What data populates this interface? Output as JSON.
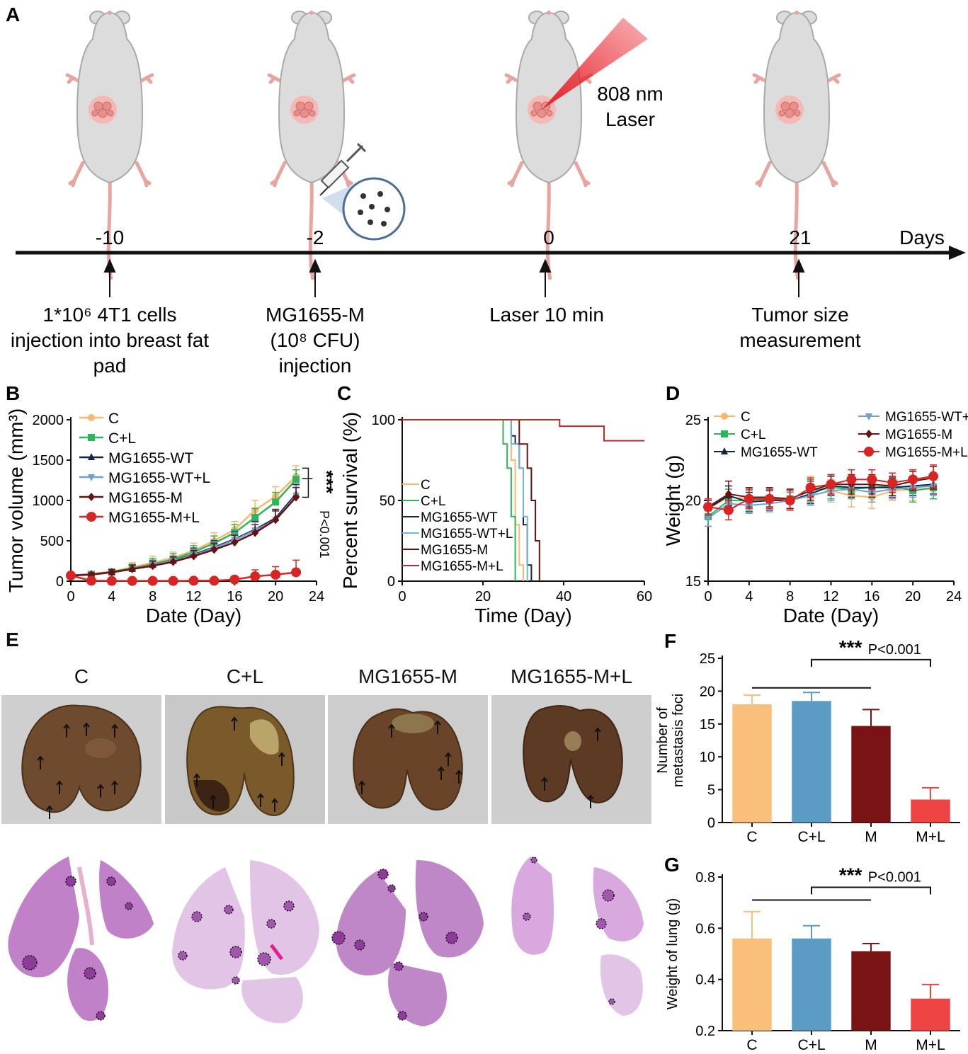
{
  "panel_labels": {
    "A": "A",
    "B": "B",
    "C": "C",
    "D": "D",
    "E": "E",
    "F": "F",
    "G": "G"
  },
  "timeline": {
    "axis_unit": "Days",
    "events": [
      {
        "day": "-10",
        "description_lines": [
          "1*10⁶ 4T1 cells",
          "injection into breast fat",
          "pad"
        ]
      },
      {
        "day": "-2",
        "description_lines": [
          "MG1655-M",
          "(10⁸ CFU)",
          "injection"
        ]
      },
      {
        "day": "0",
        "description_lines": [
          "Laser 10 min"
        ]
      },
      {
        "day": "21",
        "description_lines": [
          "Tumor size",
          "measurement"
        ]
      }
    ],
    "laser_label_lines": [
      "808 nm",
      "Laser"
    ],
    "colors": {
      "mouse_body": "#dcdcdc",
      "mouse_outline": "#a9a9a9",
      "mouse_pink": "#e8a5a0",
      "tumor": "#f0a0a0",
      "laser": "#e8202a"
    }
  },
  "panel_E": {
    "columns": [
      "C",
      "C+L",
      "MG1655-M",
      "MG1655-M+L"
    ],
    "colors": {
      "photo_bg": "#cfcfcf",
      "lung": "#6e4a2e",
      "histo": "#b66bbf",
      "histo_light": "#e2c4e7"
    }
  },
  "chart_data": [
    {
      "id": "B",
      "type": "line",
      "xlabel": "Date (Day)",
      "ylabel": "Tumor volume (mm³)",
      "xlim": [
        0,
        24
      ],
      "ylim": [
        0,
        2000
      ],
      "xticks": [
        0,
        4,
        8,
        12,
        16,
        20,
        24
      ],
      "yticks": [
        0,
        500,
        1000,
        1500,
        2000
      ],
      "x": [
        0,
        2,
        4,
        6,
        8,
        10,
        12,
        14,
        16,
        18,
        20,
        22
      ],
      "legend_position": "top-left",
      "annotation": {
        "stars": "***",
        "text": "P<0.001"
      },
      "series": [
        {
          "name": "C",
          "color": "#f9b86b",
          "marker": "circle",
          "values": [
            70,
            90,
            120,
            170,
            230,
            290,
            380,
            500,
            640,
            880,
            1050,
            1300
          ],
          "errors": [
            20,
            30,
            30,
            60,
            80,
            70,
            90,
            100,
            100,
            120,
            120,
            130
          ]
        },
        {
          "name": "C+L",
          "color": "#2cb55a",
          "marker": "square",
          "values": [
            70,
            85,
            115,
            160,
            210,
            270,
            360,
            470,
            600,
            790,
            980,
            1260
          ],
          "errors": [
            20,
            30,
            30,
            50,
            70,
            70,
            80,
            90,
            100,
            110,
            120,
            120
          ]
        },
        {
          "name": "MG1655-WT",
          "color": "#14254a",
          "marker": "triangle-up",
          "values": [
            70,
            85,
            110,
            150,
            200,
            250,
            330,
            420,
            520,
            640,
            780,
            1080
          ],
          "errors": [
            20,
            25,
            30,
            50,
            60,
            60,
            80,
            80,
            90,
            100,
            110,
            120
          ]
        },
        {
          "name": "MG1655-WT+L",
          "color": "#6f9fcf",
          "marker": "triangle-down",
          "values": [
            70,
            85,
            110,
            150,
            200,
            250,
            320,
            410,
            510,
            630,
            760,
            1060
          ],
          "errors": [
            20,
            25,
            30,
            50,
            60,
            60,
            80,
            80,
            90,
            100,
            110,
            120
          ]
        },
        {
          "name": "MG1655-M",
          "color": "#6b1010",
          "marker": "diamond",
          "values": [
            70,
            80,
            110,
            150,
            190,
            240,
            310,
            390,
            480,
            600,
            760,
            1040
          ],
          "errors": [
            20,
            25,
            30,
            50,
            60,
            60,
            70,
            80,
            90,
            100,
            110,
            120
          ]
        },
        {
          "name": "MG1655-M+L",
          "color": "#d92424",
          "marker": "circle",
          "values": [
            70,
            5,
            3,
            3,
            3,
            3,
            5,
            5,
            20,
            60,
            80,
            110
          ],
          "errors": [
            20,
            10,
            5,
            5,
            5,
            5,
            10,
            10,
            30,
            80,
            100,
            150
          ]
        }
      ]
    },
    {
      "id": "C",
      "type": "line",
      "xlabel": "Time (Day)",
      "ylabel": "Percent survival (%)",
      "xlim": [
        0,
        60
      ],
      "ylim": [
        0,
        100
      ],
      "xticks": [
        0,
        20,
        40,
        60
      ],
      "yticks": [
        0,
        50,
        100
      ],
      "legend_position": "bottom-left",
      "series": [
        {
          "name": "C",
          "color": "#f9b86b",
          "x": [
            0,
            27,
            27,
            28,
            28,
            29,
            29,
            30,
            30
          ],
          "values": [
            100,
            100,
            75,
            75,
            35,
            35,
            10,
            10,
            0
          ]
        },
        {
          "name": "C+L",
          "color": "#2cb55a",
          "x": [
            0,
            25,
            25,
            26,
            26,
            27,
            27,
            28,
            28
          ],
          "values": [
            100,
            100,
            85,
            85,
            70,
            70,
            40,
            40,
            0
          ]
        },
        {
          "name": "MG1655-WT",
          "color": "#14254a",
          "x": [
            0,
            27,
            27,
            28,
            28,
            29,
            29,
            30,
            30,
            31,
            31,
            32,
            32
          ],
          "values": [
            100,
            100,
            90,
            90,
            85,
            85,
            70,
            70,
            35,
            35,
            10,
            10,
            0
          ]
        },
        {
          "name": "MG1655-WT+L",
          "color": "#6fb8d8",
          "x": [
            0,
            27,
            27,
            29,
            29,
            30,
            30,
            31,
            31
          ],
          "values": [
            100,
            100,
            85,
            85,
            70,
            70,
            40,
            40,
            0
          ]
        },
        {
          "name": "MG1655-M",
          "color": "#6b1010",
          "x": [
            0,
            29,
            29,
            31,
            31,
            32,
            32,
            33,
            33,
            34,
            34
          ],
          "values": [
            100,
            100,
            85,
            85,
            70,
            70,
            50,
            50,
            25,
            25,
            0
          ]
        },
        {
          "name": "MG1655-M+L",
          "color": "#c42a2a",
          "x": [
            0,
            39,
            39,
            50,
            50,
            60
          ],
          "values": [
            100,
            100,
            96,
            96,
            87,
            87
          ]
        }
      ]
    },
    {
      "id": "D",
      "type": "line",
      "xlabel": "Date (Day)",
      "ylabel": "Weight (g)",
      "xlim": [
        0,
        24
      ],
      "ylim": [
        15,
        25
      ],
      "xticks": [
        0,
        4,
        8,
        12,
        16,
        20,
        24
      ],
      "yticks": [
        15,
        20,
        25
      ],
      "x": [
        0,
        2,
        4,
        6,
        8,
        10,
        12,
        14,
        16,
        18,
        20,
        22
      ],
      "legend_position": "top",
      "series": [
        {
          "name": "C",
          "color": "#f9b86b",
          "marker": "circle",
          "values": [
            19.5,
            20.2,
            20.1,
            20.0,
            20.0,
            20.8,
            20.6,
            20.3,
            20.2,
            20.6,
            20.7,
            20.7
          ],
          "errors": [
            0.6,
            0.7,
            0.6,
            0.6,
            0.6,
            0.7,
            0.7,
            0.7,
            0.7,
            0.6,
            0.7,
            0.6
          ]
        },
        {
          "name": "C+L",
          "color": "#2cb55a",
          "marker": "square",
          "values": [
            19.0,
            20.0,
            20.0,
            20.1,
            20.1,
            20.6,
            20.8,
            20.7,
            20.8,
            20.9,
            20.6,
            20.8
          ],
          "errors": [
            0.6,
            0.7,
            0.6,
            0.6,
            0.6,
            0.7,
            0.7,
            0.6,
            0.6,
            0.6,
            0.7,
            0.7
          ]
        },
        {
          "name": "MG1655-WT",
          "color": "#14254a",
          "marker": "triangle-up",
          "values": [
            19.5,
            20.3,
            19.9,
            20.0,
            20.0,
            20.4,
            20.9,
            20.8,
            20.8,
            20.8,
            20.9,
            21.0
          ],
          "errors": [
            0.5,
            0.6,
            0.6,
            0.6,
            0.5,
            0.6,
            0.6,
            0.6,
            0.6,
            0.6,
            0.6,
            0.6
          ]
        },
        {
          "name": "MG1655-WT+L",
          "color": "#6f9fcf",
          "marker": "triangle-down",
          "values": [
            18.9,
            19.8,
            19.7,
            19.8,
            20.0,
            20.3,
            20.6,
            20.7,
            20.5,
            20.7,
            20.8,
            20.9
          ],
          "errors": [
            0.5,
            0.6,
            0.5,
            0.5,
            0.5,
            0.6,
            0.6,
            0.6,
            0.6,
            0.6,
            0.6,
            0.6
          ]
        },
        {
          "name": "MG1655-M",
          "color": "#6b1010",
          "marker": "diamond",
          "values": [
            19.6,
            20.4,
            20.2,
            20.2,
            20.1,
            20.6,
            21.0,
            21.0,
            21.0,
            20.9,
            21.2,
            21.4
          ],
          "errors": [
            0.5,
            0.8,
            0.6,
            0.6,
            0.6,
            0.6,
            0.6,
            0.6,
            0.6,
            0.6,
            0.6,
            0.7
          ]
        },
        {
          "name": "MG1655-M+L",
          "color": "#d92424",
          "marker": "circle",
          "values": [
            19.6,
            19.4,
            20.1,
            20.1,
            20.0,
            20.8,
            21.0,
            21.3,
            21.3,
            21.1,
            21.3,
            21.5
          ],
          "errors": [
            0.5,
            0.6,
            0.6,
            0.6,
            0.6,
            0.6,
            0.6,
            0.6,
            0.6,
            0.6,
            0.6,
            0.7
          ]
        }
      ]
    },
    {
      "id": "F",
      "type": "bar",
      "ylabel_lines": [
        "Number of",
        "metastasis foci"
      ],
      "categories": [
        "C",
        "C+L",
        "M",
        "M+L"
      ],
      "values": [
        18,
        18.5,
        14.7,
        3.5
      ],
      "errors": [
        1.4,
        1.3,
        2.5,
        1.8
      ],
      "colors": [
        "#fbbf7c",
        "#5b9bc4",
        "#7a1414",
        "#ef4444"
      ],
      "ylim": [
        0,
        25
      ],
      "yticks": [
        0,
        5,
        10,
        15,
        20,
        25
      ],
      "annotation": {
        "stars": "***",
        "text": "P<0.001"
      }
    },
    {
      "id": "G",
      "type": "bar",
      "ylabel": "Weight of lung (g)",
      "categories": [
        "C",
        "C+L",
        "M",
        "M+L"
      ],
      "values": [
        0.56,
        0.56,
        0.51,
        0.325
      ],
      "errors": [
        0.105,
        0.05,
        0.03,
        0.055
      ],
      "colors": [
        "#fbbf7c",
        "#5b9bc4",
        "#7a1414",
        "#ef4444"
      ],
      "ylim": [
        0.2,
        0.8
      ],
      "yticks": [
        0.2,
        0.4,
        0.6,
        0.8
      ],
      "annotation": {
        "stars": "***",
        "text": "P<0.001"
      }
    }
  ]
}
